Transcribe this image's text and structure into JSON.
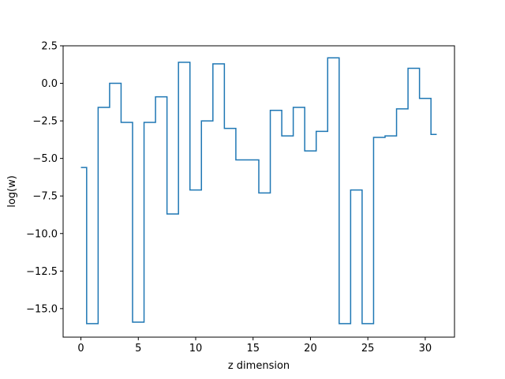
{
  "chart_data": {
    "type": "line",
    "drawstyle": "steps-mid",
    "xlabel": "z dimension",
    "ylabel": "log(w)",
    "xlim": [
      -1.55,
      32.55
    ],
    "ylim": [
      -16.9,
      2.5
    ],
    "xticks": [
      0,
      5,
      10,
      15,
      20,
      25,
      30
    ],
    "xtick_labels": [
      "0",
      "5",
      "10",
      "15",
      "20",
      "25",
      "30"
    ],
    "yticks": [
      2.5,
      0.0,
      -2.5,
      -5.0,
      -7.5,
      -10.0,
      -12.5,
      -15.0
    ],
    "ytick_labels": [
      "2.5",
      "0.0",
      "−2.5",
      "−5.0",
      "−7.5",
      "−10.0",
      "−12.5",
      "−15.0"
    ],
    "grid": false,
    "series": [
      {
        "color": "#1f77b4",
        "x": [
          0,
          1,
          2,
          3,
          4,
          5,
          6,
          7,
          8,
          9,
          10,
          11,
          12,
          13,
          14,
          15,
          16,
          17,
          18,
          19,
          20,
          21,
          22,
          23,
          24,
          25,
          26,
          27,
          28,
          29,
          30,
          31
        ],
        "y": [
          -5.6,
          -16.0,
          -1.6,
          0.0,
          -2.6,
          -15.9,
          -2.6,
          -0.9,
          -8.7,
          1.4,
          -7.1,
          -2.5,
          1.3,
          -3.0,
          -5.1,
          -5.1,
          -7.3,
          -1.8,
          -3.5,
          -1.6,
          -4.5,
          -3.2,
          1.7,
          -16.0,
          -7.1,
          -16.0,
          -3.6,
          -3.5,
          -1.7,
          1.0,
          -1.0,
          -3.4
        ]
      }
    ]
  }
}
